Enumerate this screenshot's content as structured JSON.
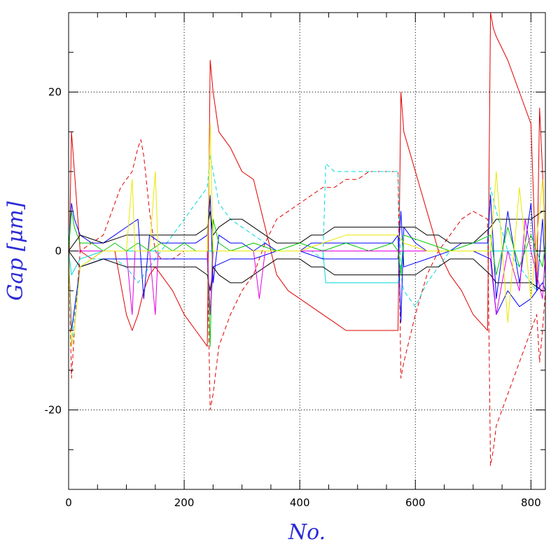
{
  "chart_data": {
    "type": "line",
    "title": "",
    "xlabel": "No.",
    "ylabel": "Gap [μm]",
    "xlim": [
      0,
      825
    ],
    "ylim": [
      -30,
      30
    ],
    "x_ticks": [
      0,
      200,
      400,
      600,
      800
    ],
    "x_tick_labels": [
      "0",
      "200",
      "400",
      "600",
      "800"
    ],
    "y_ticks": [
      -20,
      0,
      20
    ],
    "y_tick_labels": [
      "-20",
      "0",
      "20"
    ],
    "grid": true,
    "legend": "none",
    "colors": {
      "red": "#e00000",
      "cyan": "#00d8d8",
      "blue": "#0000ff",
      "black": "#000000",
      "green": "#00c800",
      "magenta": "#e000e0",
      "yellow": "#e8e800",
      "axis_title": "#2b2bd6"
    },
    "series": [
      {
        "color": "red",
        "dash": false,
        "x": [
          0,
          5,
          10,
          20,
          40,
          60,
          80,
          100,
          110,
          120,
          130,
          140,
          150,
          160,
          180,
          200,
          220,
          240,
          245,
          250,
          260,
          280,
          300,
          320,
          340,
          360,
          380,
          400,
          420,
          440,
          460,
          480,
          500,
          520,
          540,
          560,
          570,
          575,
          580,
          600,
          620,
          640,
          660,
          680,
          700,
          725,
          730,
          735,
          740,
          760,
          780,
          800,
          810,
          815,
          820,
          825
        ],
        "y": [
          -5,
          15,
          10,
          0,
          -1,
          0,
          0,
          -8,
          -10,
          -8,
          -5,
          -3,
          -2,
          -3,
          -5,
          -8,
          -10,
          -12,
          24,
          20,
          15,
          13,
          10,
          9,
          3,
          -3,
          -5,
          -6,
          -7,
          -8,
          -9,
          -10,
          -10,
          -10,
          -10,
          -10,
          -10,
          20,
          15,
          10,
          5,
          0,
          -3,
          -5,
          -8,
          -10,
          30,
          28,
          27,
          24,
          20,
          16,
          -5,
          18,
          10,
          0
        ]
      },
      {
        "color": "red",
        "dash": true,
        "x": [
          0,
          5,
          10,
          20,
          40,
          60,
          70,
          80,
          90,
          100,
          110,
          120,
          125,
          130,
          140,
          150,
          160,
          180,
          200,
          220,
          240,
          245,
          250,
          260,
          280,
          300,
          320,
          340,
          360,
          380,
          400,
          420,
          440,
          460,
          480,
          500,
          520,
          540,
          560,
          570,
          575,
          580,
          600,
          620,
          640,
          660,
          680,
          700,
          725,
          730,
          735,
          740,
          760,
          780,
          800,
          810,
          815,
          820,
          825
        ],
        "y": [
          0,
          -16,
          -10,
          0,
          1,
          2,
          4,
          6,
          8,
          9,
          10,
          13,
          14,
          12,
          5,
          0,
          -1,
          -1,
          0,
          0,
          0,
          -20,
          -18,
          -12,
          -8,
          -5,
          -3,
          1,
          4,
          5,
          6,
          7,
          8,
          8,
          9,
          9,
          10,
          10,
          10,
          10,
          -16,
          -14,
          -8,
          -3,
          0,
          2,
          4,
          5,
          4,
          -27,
          -25,
          -22,
          -18,
          -14,
          -10,
          -8,
          -14,
          -10,
          -5
        ]
      },
      {
        "color": "cyan",
        "dash": true,
        "x": [
          0,
          5,
          10,
          20,
          40,
          60,
          80,
          100,
          110,
          120,
          130,
          140,
          150,
          160,
          180,
          200,
          220,
          240,
          245,
          250,
          260,
          280,
          300,
          320,
          340,
          360,
          380,
          400,
          420,
          440,
          445,
          460,
          480,
          500,
          520,
          540,
          560,
          570,
          575,
          580,
          600,
          620,
          640,
          660,
          680,
          700,
          725,
          730,
          740,
          760,
          780,
          800,
          810,
          820,
          825
        ],
        "y": [
          0,
          -12,
          -8,
          -2,
          -1,
          -1,
          -1,
          -2,
          -3,
          -4,
          -3,
          -2,
          -1,
          0,
          2,
          4,
          6,
          8,
          12,
          10,
          6,
          4,
          3,
          2,
          1,
          0,
          0,
          0,
          0,
          -1,
          11,
          10,
          10,
          10,
          10,
          10,
          10,
          10,
          -3,
          -5,
          -7,
          -4,
          -2,
          0,
          0,
          0,
          0,
          8,
          5,
          0,
          -2,
          -4,
          -5,
          -4,
          -3
        ]
      },
      {
        "color": "cyan",
        "dash": false,
        "x": [
          0,
          5,
          20,
          60,
          100,
          140,
          180,
          220,
          240,
          260,
          300,
          340,
          380,
          420,
          440,
          445,
          460,
          500,
          540,
          570,
          580,
          620,
          660,
          700,
          740,
          780,
          825
        ],
        "y": [
          0,
          -3,
          -1,
          0,
          0,
          0,
          0,
          0,
          0,
          0,
          0,
          0,
          0,
          0,
          0,
          -4,
          -4,
          -4,
          -4,
          -4,
          0,
          0,
          0,
          0,
          0,
          0,
          0
        ]
      },
      {
        "color": "blue",
        "dash": false,
        "x": [
          0,
          5,
          10,
          20,
          40,
          60,
          80,
          100,
          120,
          130,
          140,
          160,
          180,
          200,
          220,
          240,
          245,
          250,
          260,
          280,
          300,
          320,
          340,
          360,
          380,
          400,
          420,
          440,
          460,
          480,
          500,
          520,
          540,
          560,
          570,
          575,
          580,
          600,
          620,
          640,
          660,
          680,
          700,
          725,
          730,
          740,
          760,
          780,
          800,
          810,
          820,
          825
        ],
        "y": [
          0,
          6,
          4,
          2,
          1,
          1,
          2,
          3,
          4,
          -6,
          2,
          1,
          1,
          1,
          1,
          2,
          7,
          -4,
          2,
          1,
          1,
          0,
          1,
          0,
          0,
          0,
          1,
          1,
          1,
          1,
          1,
          1,
          1,
          1,
          2,
          -9,
          3,
          1,
          0,
          0,
          0,
          1,
          1,
          1,
          7,
          -6,
          5,
          -4,
          6,
          -5,
          4,
          -3
        ]
      },
      {
        "color": "blue",
        "dash": false,
        "x": [
          0,
          5,
          20,
          60,
          100,
          140,
          180,
          220,
          240,
          245,
          250,
          280,
          320,
          360,
          400,
          440,
          480,
          520,
          560,
          570,
          575,
          580,
          620,
          660,
          700,
          730,
          740,
          760,
          780,
          800,
          820,
          825
        ],
        "y": [
          0,
          -10,
          -2,
          -1,
          -1,
          -1,
          -1,
          -1,
          -1,
          -8,
          -2,
          -1,
          -1,
          0,
          0,
          -1,
          -1,
          -1,
          -1,
          -1,
          5,
          -2,
          -1,
          0,
          0,
          -1,
          -8,
          -5,
          -7,
          -6,
          -4,
          -5
        ]
      },
      {
        "color": "black",
        "dash": false,
        "x": [
          0,
          20,
          60,
          100,
          140,
          180,
          220,
          240,
          245,
          250,
          260,
          280,
          300,
          320,
          340,
          360,
          380,
          400,
          420,
          440,
          460,
          480,
          500,
          520,
          540,
          560,
          570,
          580,
          600,
          620,
          640,
          660,
          680,
          700,
          730,
          740,
          760,
          780,
          800,
          820,
          825
        ],
        "y": [
          0,
          2,
          1,
          2,
          2,
          2,
          2,
          3,
          5,
          2,
          3,
          4,
          4,
          3,
          2,
          1,
          1,
          1,
          2,
          2,
          3,
          3,
          3,
          3,
          3,
          3,
          3,
          3,
          3,
          2,
          2,
          1,
          1,
          1,
          3,
          4,
          4,
          4,
          4,
          5,
          5
        ]
      },
      {
        "color": "black",
        "dash": false,
        "x": [
          0,
          20,
          60,
          100,
          140,
          180,
          220,
          240,
          245,
          250,
          260,
          280,
          300,
          320,
          340,
          360,
          380,
          400,
          420,
          440,
          460,
          480,
          500,
          520,
          540,
          560,
          570,
          580,
          600,
          620,
          640,
          660,
          680,
          700,
          730,
          740,
          760,
          780,
          800,
          820,
          825
        ],
        "y": [
          0,
          -2,
          -1,
          -2,
          -2,
          -2,
          -2,
          -3,
          -5,
          -2,
          -3,
          -4,
          -4,
          -3,
          -2,
          -1,
          -1,
          -1,
          -2,
          -2,
          -3,
          -3,
          -3,
          -3,
          -3,
          -3,
          -3,
          -3,
          -3,
          -2,
          -2,
          -1,
          -1,
          -1,
          -3,
          -4,
          -4,
          -4,
          -4,
          -5,
          -5
        ]
      },
      {
        "color": "green",
        "dash": false,
        "x": [
          0,
          5,
          10,
          20,
          40,
          60,
          80,
          100,
          120,
          140,
          160,
          180,
          200,
          220,
          240,
          245,
          250,
          260,
          280,
          320,
          360,
          400,
          440,
          480,
          520,
          560,
          570,
          575,
          580,
          620,
          660,
          700,
          730,
          740,
          760,
          780,
          800,
          820,
          825
        ],
        "y": [
          0,
          5,
          3,
          1,
          1,
          0,
          1,
          0,
          1,
          0,
          1,
          0,
          1,
          0,
          0,
          -12,
          4,
          1,
          0,
          1,
          0,
          1,
          0,
          1,
          0,
          1,
          0,
          -3,
          2,
          1,
          0,
          1,
          2,
          -3,
          3,
          -2,
          2,
          -2,
          1
        ]
      },
      {
        "color": "magenta",
        "dash": false,
        "x": [
          0,
          20,
          60,
          100,
          110,
          115,
          120,
          140,
          150,
          155,
          160,
          200,
          240,
          245,
          250,
          300,
          320,
          330,
          340,
          400,
          440,
          480,
          520,
          560,
          570,
          580,
          620,
          660,
          700,
          730,
          740,
          760,
          780,
          790,
          800,
          820,
          825
        ],
        "y": [
          0,
          0,
          0,
          0,
          -8,
          0,
          0,
          0,
          -8,
          0,
          0,
          0,
          0,
          -8,
          0,
          0,
          0,
          -6,
          0,
          0,
          0,
          0,
          0,
          0,
          0,
          0,
          0,
          0,
          0,
          0,
          -8,
          0,
          -5,
          4,
          0,
          -6,
          0
        ]
      },
      {
        "color": "yellow",
        "dash": false,
        "x": [
          0,
          5,
          10,
          20,
          60,
          100,
          110,
          115,
          120,
          140,
          150,
          155,
          160,
          200,
          240,
          245,
          250,
          300,
          340,
          400,
          440,
          480,
          520,
          560,
          570,
          580,
          620,
          660,
          700,
          730,
          740,
          760,
          780,
          800,
          820,
          825
        ],
        "y": [
          0,
          -12,
          -10,
          -2,
          0,
          0,
          9,
          0,
          0,
          0,
          10,
          0,
          0,
          0,
          0,
          16,
          0,
          0,
          0,
          0,
          1,
          2,
          2,
          2,
          2,
          1,
          0,
          0,
          0,
          0,
          10,
          -9,
          8,
          -6,
          9,
          0
        ]
      }
    ]
  }
}
